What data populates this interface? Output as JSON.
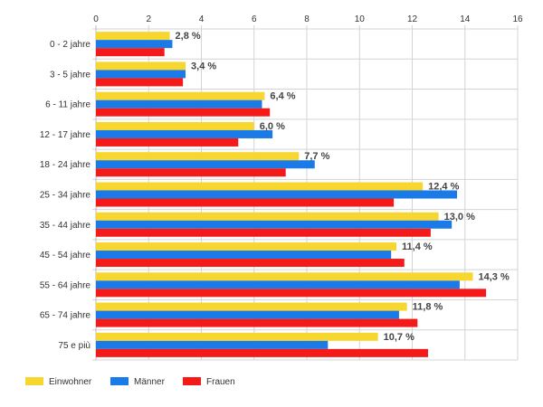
{
  "chart_data": {
    "type": "bar",
    "orientation": "horizontal",
    "categories": [
      "0 - 2 jahre",
      "3 - 5 jahre",
      "6 - 11 jahre",
      "12 - 17 jahre",
      "18 - 24 jahre",
      "25 - 34 jahre",
      "35 - 44 jahre",
      "45 - 54 jahre",
      "55 - 64 jahre",
      "65 - 74 jahre",
      "75 e più"
    ],
    "series": [
      {
        "name": "Einwohner",
        "color": "#f7d630",
        "values": [
          2.8,
          3.4,
          6.4,
          6.0,
          7.7,
          12.4,
          13.0,
          11.4,
          14.3,
          11.8,
          10.7
        ]
      },
      {
        "name": "Männer",
        "color": "#1a7ae8",
        "values": [
          2.9,
          3.4,
          6.3,
          6.7,
          8.3,
          13.7,
          13.5,
          11.2,
          13.8,
          11.5,
          8.8
        ]
      },
      {
        "name": "Frauen",
        "color": "#f51a1a",
        "values": [
          2.6,
          3.3,
          6.6,
          5.4,
          7.2,
          11.3,
          12.7,
          11.7,
          14.8,
          12.2,
          12.6
        ]
      }
    ],
    "data_labels": [
      "2,8 %",
      "3,4 %",
      "6,4 %",
      "6,0 %",
      "7,7 %",
      "12,4 %",
      "13,0 %",
      "11,4 %",
      "14,3 %",
      "11,8 %",
      "10,7 %"
    ],
    "xlim": [
      0,
      16
    ],
    "xticks": [
      "0",
      "2",
      "4",
      "6",
      "8",
      "10",
      "12",
      "14",
      "16"
    ],
    "x_axis_position": "top",
    "grid": true,
    "legend_position": "bottom-left",
    "title": "",
    "xlabel": "",
    "ylabel": ""
  }
}
